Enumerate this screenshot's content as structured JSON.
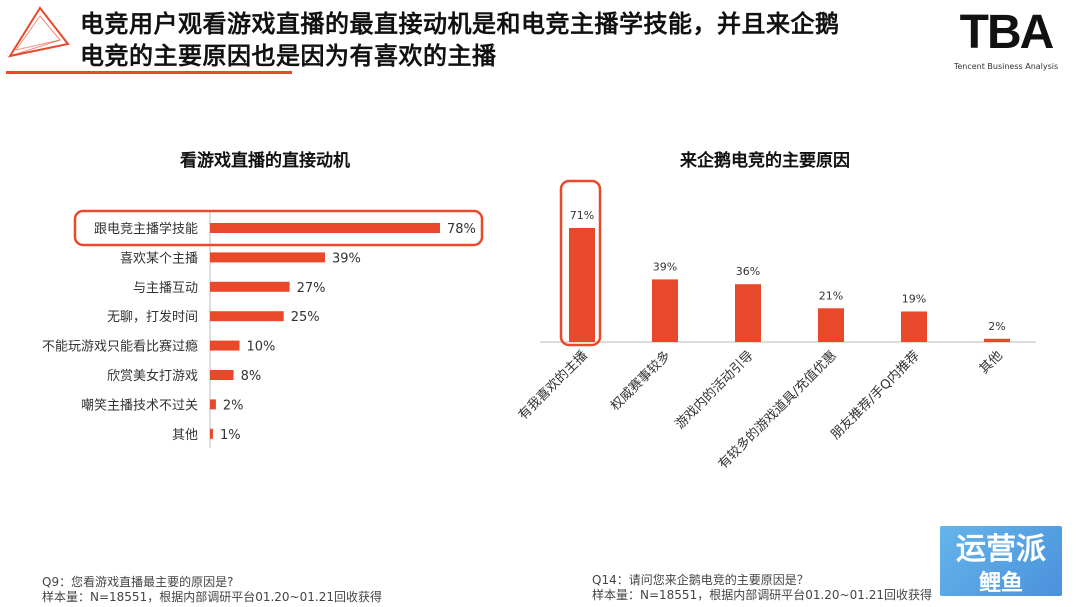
{
  "header": {
    "title_line1": "电竞用户观看游戏直播的最直接动机是和电竞主播学技能，并且来企鹅",
    "title_line2": "电竞的主要原因也是因为有喜欢的主播",
    "brand_mark": "TBA",
    "brand_sub": "Tencent Business Analysis",
    "accent": "#e8492a"
  },
  "chart_data": [
    {
      "type": "bar",
      "orientation": "horizontal",
      "title": "看游戏直播的直接动机",
      "categories": [
        "跟电竞主播学技能",
        "喜欢某个主播",
        "与主播互动",
        "无聊，打发时间",
        "不能玩游戏只能看比赛过瘾",
        "欣赏美女打游戏",
        "嘲笑主播技术不过关",
        "其他"
      ],
      "values": [
        78,
        39,
        27,
        25,
        10,
        8,
        2,
        1
      ],
      "labels": [
        "78%",
        "39%",
        "27%",
        "25%",
        "10%",
        "8%",
        "2%",
        "1%"
      ],
      "xlim": [
        0,
        100
      ],
      "highlight_index": 0,
      "color": "#e8492a"
    },
    {
      "type": "bar",
      "orientation": "vertical",
      "title": "来企鹅电竞的主要原因",
      "categories": [
        "有我喜欢的主播",
        "权威赛事较多",
        "游戏内的活动引导",
        "有较多的游戏道具/充值优惠",
        "朋友推荐/手Q内推荐",
        "其他"
      ],
      "values": [
        71,
        39,
        36,
        21,
        19,
        2
      ],
      "labels": [
        "71%",
        "39%",
        "36%",
        "21%",
        "19%",
        "2%"
      ],
      "ylim": [
        0,
        100
      ],
      "highlight_index": 0,
      "color": "#e8492a"
    }
  ],
  "notes": {
    "left_q": "Q9：您看游戏直播最主要的原因是?",
    "left_n": "样本量：N=18551，根据内部调研平台01.20~01.21回收获得",
    "right_q": "Q14：请问您来企鹅电竞的主要原因是？",
    "right_n": "样本量：N=18551，根据内部调研平台01.20~01.21回收获得"
  },
  "watermark": {
    "line1": "运营派",
    "line2": "鲤鱼"
  }
}
